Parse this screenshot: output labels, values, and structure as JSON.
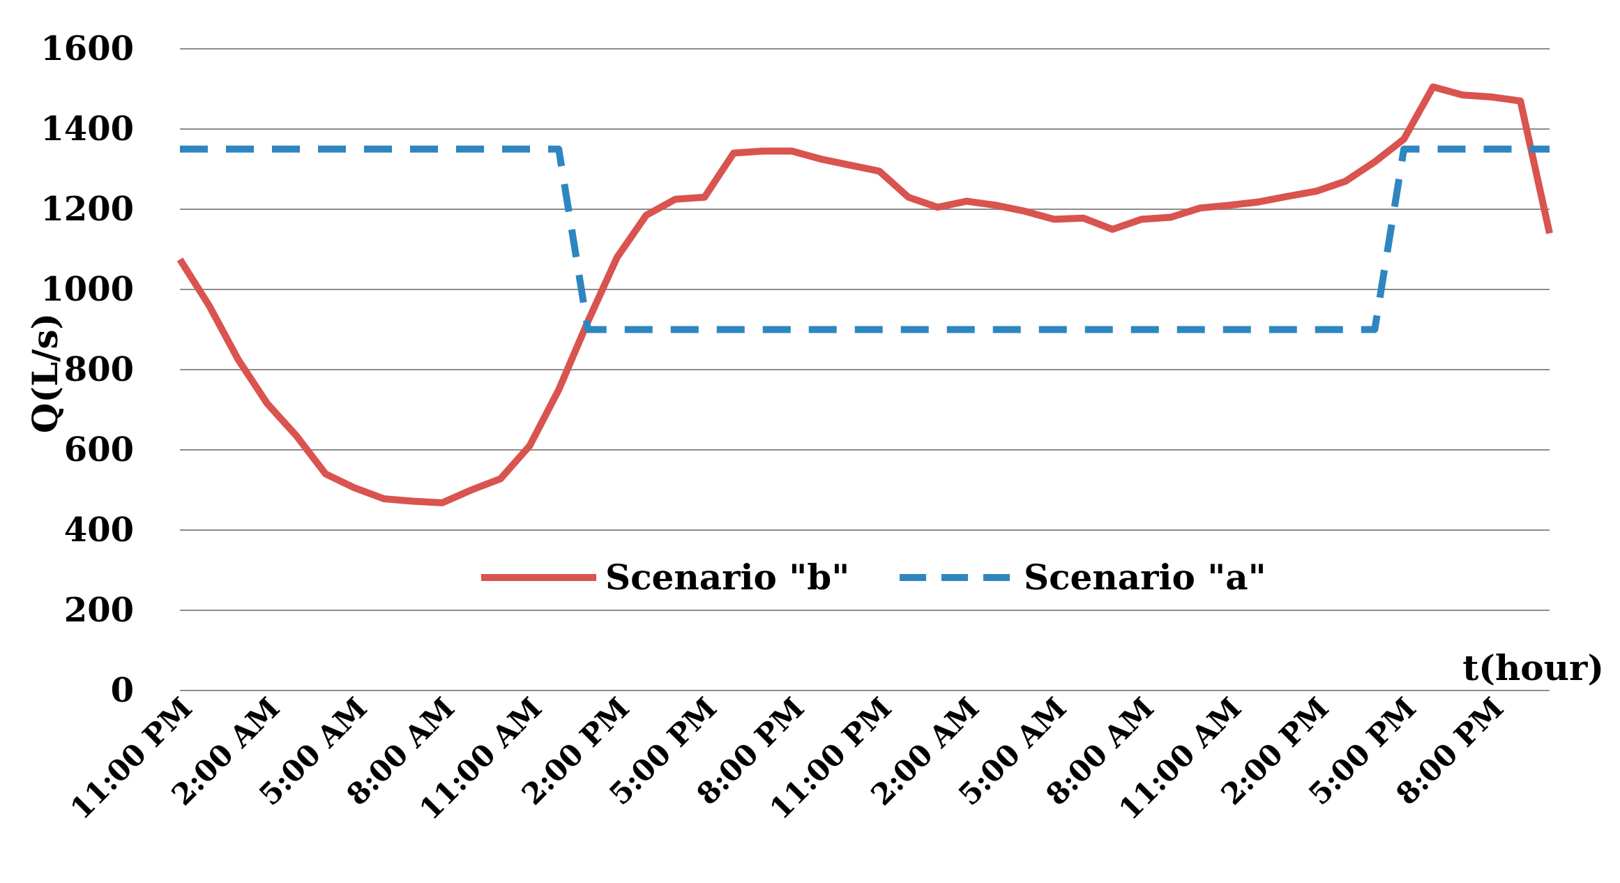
{
  "chart_data": {
    "type": "line",
    "title": "",
    "xlabel": "t(hour)",
    "ylabel": "Q(L/s)",
    "ylim": [
      0,
      1600
    ],
    "yticks": [
      0,
      200,
      400,
      600,
      800,
      1000,
      1200,
      1400,
      1600
    ],
    "grid": "horizontal",
    "legend": "center-inside",
    "x_tick_labels": [
      "11:00 PM",
      "2:00 AM",
      "5:00 AM",
      "8:00 AM",
      "11:00 AM",
      "2:00 PM",
      "5:00 PM",
      "8:00 PM",
      "11:00 PM",
      "2:00 AM",
      "5:00 AM",
      "8:00 AM",
      "11:00 AM",
      "2:00 PM",
      "5:00 PM",
      "8:00 PM"
    ],
    "x_tick_step_hours": 3,
    "x_range_hours": [
      0,
      47
    ],
    "series": [
      {
        "name": "Scenario \"b\"",
        "color": "#d9534f",
        "style": "solid",
        "points": [
          [
            0,
            1075
          ],
          [
            1,
            960
          ],
          [
            2,
            825
          ],
          [
            3,
            715
          ],
          [
            4,
            635
          ],
          [
            5,
            540
          ],
          [
            6,
            505
          ],
          [
            7,
            478
          ],
          [
            8,
            472
          ],
          [
            9,
            468
          ],
          [
            10,
            500
          ],
          [
            11,
            528
          ],
          [
            12,
            610
          ],
          [
            13,
            750
          ],
          [
            14,
            920
          ],
          [
            15,
            1080
          ],
          [
            16,
            1185
          ],
          [
            17,
            1225
          ],
          [
            18,
            1230
          ],
          [
            19,
            1340
          ],
          [
            20,
            1345
          ],
          [
            21,
            1345
          ],
          [
            22,
            1325
          ],
          [
            23,
            1310
          ],
          [
            24,
            1295
          ],
          [
            25,
            1230
          ],
          [
            26,
            1205
          ],
          [
            27,
            1220
          ],
          [
            28,
            1210
          ],
          [
            29,
            1195
          ],
          [
            30,
            1175
          ],
          [
            31,
            1178
          ],
          [
            32,
            1150
          ],
          [
            33,
            1175
          ],
          [
            34,
            1180
          ],
          [
            35,
            1203
          ],
          [
            36,
            1210
          ],
          [
            37,
            1218
          ],
          [
            38,
            1232
          ],
          [
            39,
            1245
          ],
          [
            40,
            1270
          ],
          [
            41,
            1318
          ],
          [
            42,
            1375
          ],
          [
            43,
            1505
          ],
          [
            44,
            1485
          ],
          [
            45,
            1480
          ],
          [
            46,
            1470
          ],
          [
            47,
            1140
          ]
        ]
      },
      {
        "name": "Scenario \"a\"",
        "color": "#2e86c1",
        "style": "dashed",
        "points": [
          [
            0,
            1350
          ],
          [
            13,
            1350
          ],
          [
            14,
            900
          ],
          [
            41,
            900
          ],
          [
            42,
            1350
          ],
          [
            47,
            1350
          ]
        ]
      }
    ]
  }
}
